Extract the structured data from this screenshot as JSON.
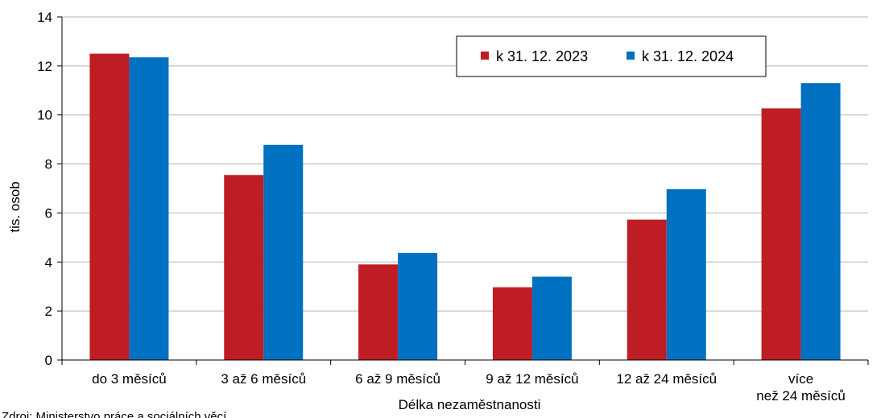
{
  "chart_data": {
    "type": "bar",
    "title": "",
    "xlabel": "Délka nezaměstnanosti",
    "ylabel": "tis. osob",
    "ylim": [
      0,
      14
    ],
    "yticks": [
      "0",
      "2",
      "4",
      "6",
      "8",
      "10",
      "12",
      "14"
    ],
    "grid": true,
    "legend_position": "top-right",
    "categories": [
      [
        "do 3 měsíců"
      ],
      [
        "3 až 6 měsíců"
      ],
      [
        "6 až 9 měsíců"
      ],
      [
        "9 až 12 měsíců"
      ],
      [
        "12 až 24 měsíců"
      ],
      [
        "více",
        "než 24 měsíců"
      ]
    ],
    "series": [
      {
        "name": "k 31. 12. 2023",
        "color": "#be1e23",
        "values": [
          12.5,
          7.55,
          3.9,
          2.97,
          5.73,
          10.27
        ]
      },
      {
        "name": "k 31. 12. 2024",
        "color": "#0070c0",
        "values": [
          12.35,
          8.78,
          4.37,
          3.4,
          6.97,
          11.3
        ]
      }
    ]
  },
  "footer": {
    "source": "Zdroj: Ministerstvo práce a sociálních věcí"
  }
}
